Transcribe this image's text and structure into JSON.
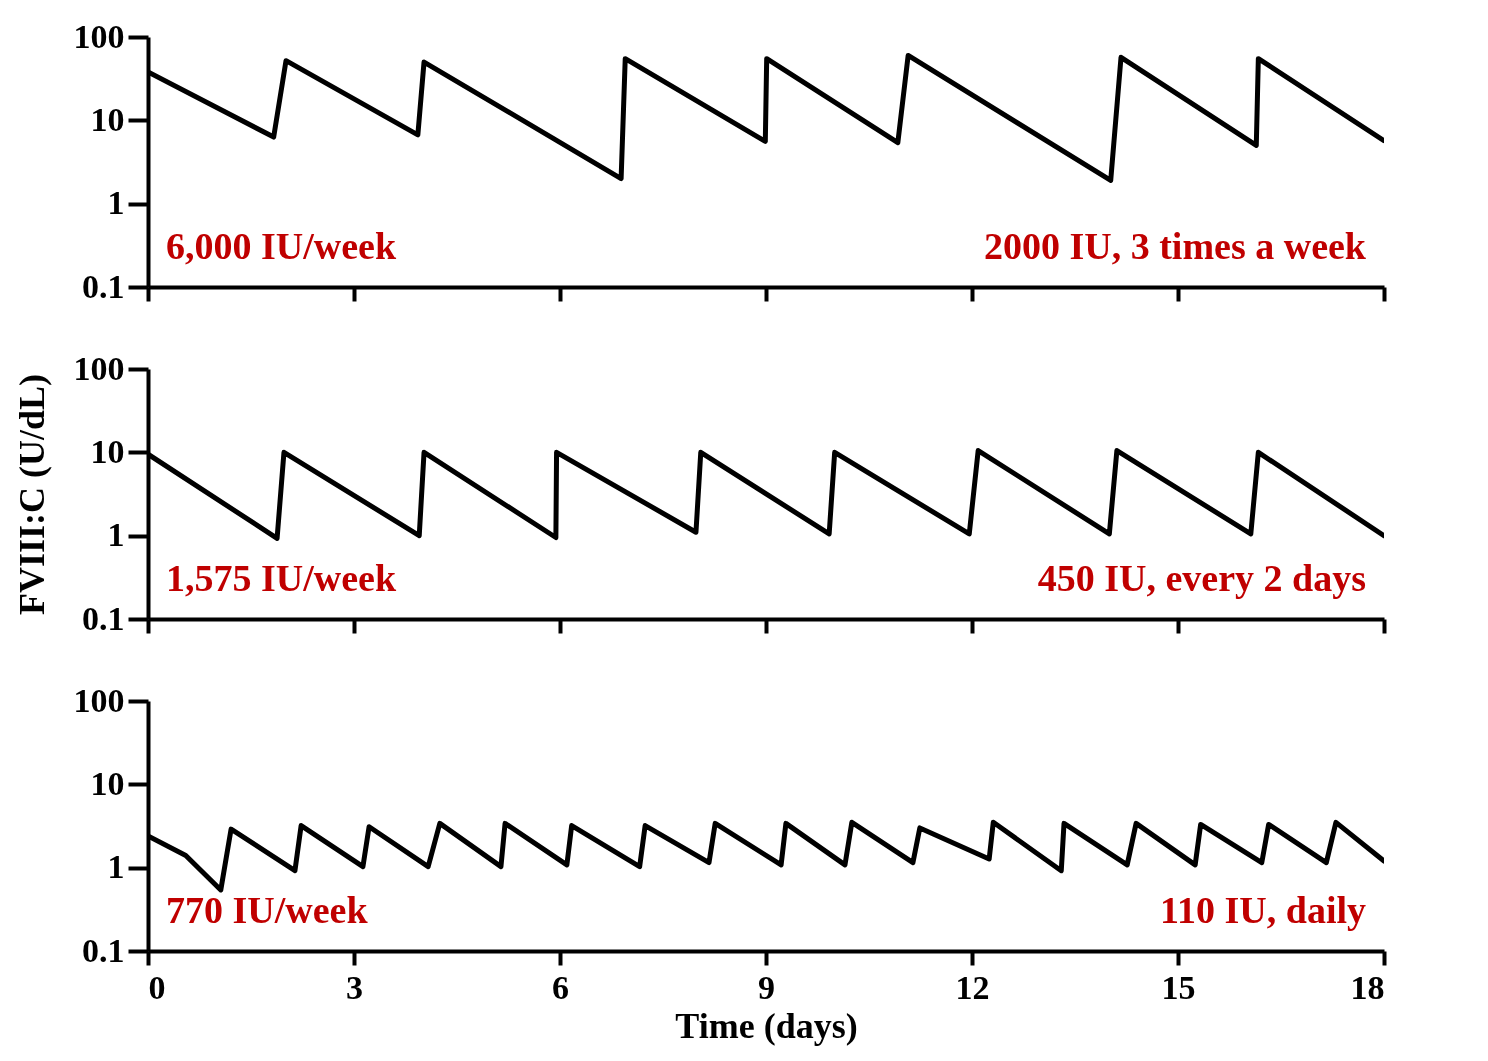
{
  "chart_data": [
    {
      "type": "line",
      "x": [
        0,
        1.83,
        2.01,
        3.93,
        4.02,
        6.89,
        6.95,
        8.99,
        9.01,
        10.92,
        11.07,
        14.02,
        14.17,
        16.14,
        16.17,
        18
      ],
      "series": [
        {
          "color": "#000000",
          "values": [
            38,
            6.3,
            52,
            6.7,
            50,
            2.0,
            55,
            5.6,
            55,
            5.4,
            60,
            1.9,
            57,
            5.0,
            55,
            5.7
          ]
        }
      ],
      "xlim": [
        0,
        18
      ],
      "xticks": [
        0,
        3,
        6,
        9,
        12,
        15,
        18
      ],
      "ylim": [
        0.1,
        100
      ],
      "yticks": [
        0.1,
        1,
        10,
        100
      ],
      "log": true,
      "tick_labels": "y",
      "annotations": [
        "6,000 IU/week",
        "2000 IU, 3 times a week"
      ]
    },
    {
      "type": "line",
      "x": [
        0,
        1.88,
        1.98,
        3.95,
        4.02,
        5.94,
        5.95,
        7.98,
        8.05,
        9.92,
        10.0,
        11.96,
        12.09,
        14.0,
        14.11,
        16.06,
        16.17,
        18
      ],
      "series": [
        {
          "color": "#000000",
          "values": [
            9.5,
            0.93,
            10,
            1.0,
            10,
            0.95,
            10,
            1.1,
            10,
            1.05,
            10,
            1.05,
            10.5,
            1.05,
            10.5,
            1.05,
            10,
            1.0
          ]
        }
      ],
      "ylabel": "FVIII:C (U/dL)",
      "xlim": [
        0,
        18
      ],
      "xticks": [
        0,
        3,
        6,
        9,
        12,
        15,
        18
      ],
      "ylim": [
        0.1,
        100
      ],
      "yticks": [
        0.1,
        1,
        10,
        100
      ],
      "log": true,
      "tick_labels": "y",
      "annotations": [
        "1,575 IU/week",
        "450 IU, every 2 days"
      ]
    },
    {
      "type": "line",
      "x": [
        0,
        0.55,
        1.06,
        1.21,
        2.14,
        2.23,
        3.13,
        3.22,
        4.08,
        4.25,
        5.14,
        5.2,
        6.1,
        6.17,
        7.16,
        7.24,
        8.17,
        8.26,
        9.22,
        9.29,
        10.15,
        10.25,
        11.14,
        11.24,
        12.25,
        12.31,
        13.3,
        13.34,
        14.26,
        14.39,
        15.25,
        15.33,
        16.22,
        16.32,
        17.16,
        17.3,
        18
      ],
      "series": [
        {
          "color": "#000000",
          "values": [
            2.4,
            1.4,
            0.54,
            2.9,
            0.92,
            3.2,
            1.03,
            3.1,
            1.03,
            3.4,
            1.03,
            3.4,
            1.08,
            3.2,
            1.03,
            3.2,
            1.15,
            3.4,
            1.08,
            3.4,
            1.08,
            3.5,
            1.15,
            3.0,
            1.27,
            3.5,
            0.92,
            3.4,
            1.08,
            3.4,
            1.08,
            3.3,
            1.15,
            3.3,
            1.15,
            3.5,
            1.2
          ]
        }
      ],
      "xlabel": "Time (days)",
      "xlim": [
        0,
        18
      ],
      "xticks": [
        0,
        3,
        6,
        9,
        12,
        15,
        18
      ],
      "ylim": [
        0.1,
        100
      ],
      "yticks": [
        0.1,
        1,
        10,
        100
      ],
      "log": true,
      "annotations": [
        "770 IU/week",
        "110 IU, daily"
      ]
    }
  ]
}
